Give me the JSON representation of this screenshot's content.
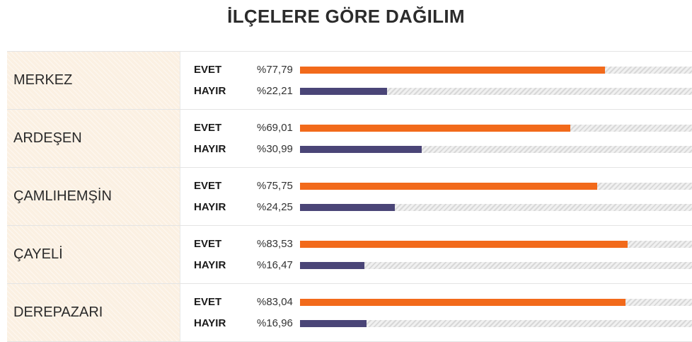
{
  "title": "İLÇELERE GÖRE DAĞILIM",
  "colors": {
    "evet": "#f26a1b",
    "hayir": "#4a4577"
  },
  "chart_data": {
    "type": "bar",
    "title": "İLÇELERE GÖRE DAĞILIM",
    "categories": [
      "MERKEZ",
      "ARDEŞEN",
      "ÇAMLIHEMŞİN",
      "ÇAYELİ",
      "DEREPAZARI"
    ],
    "series": [
      {
        "name": "EVET",
        "color": "#f26a1b",
        "values": [
          77.79,
          69.01,
          75.75,
          83.53,
          83.04
        ],
        "labels": [
          "%77,79",
          "%69,01",
          "%75,75",
          "%83,53",
          "%83,04"
        ]
      },
      {
        "name": "HAYIR",
        "color": "#4a4577",
        "values": [
          22.21,
          30.99,
          24.25,
          16.47,
          16.96
        ],
        "labels": [
          "%22,21",
          "%30,99",
          "%24,25",
          "%16,47",
          "%16,96"
        ]
      }
    ],
    "ylim": [
      0,
      100
    ]
  },
  "rows": [
    {
      "district": "MERKEZ",
      "evet_label": "EVET",
      "evet_pct": "%77,79",
      "evet_value": 77.79,
      "hayir_label": "HAYIR",
      "hayir_pct": "%22,21",
      "hayir_value": 22.21
    },
    {
      "district": "ARDEŞEN",
      "evet_label": "EVET",
      "evet_pct": "%69,01",
      "evet_value": 69.01,
      "hayir_label": "HAYIR",
      "hayir_pct": "%30,99",
      "hayir_value": 30.99
    },
    {
      "district": "ÇAMLIHEMŞİN",
      "evet_label": "EVET",
      "evet_pct": "%75,75",
      "evet_value": 75.75,
      "hayir_label": "HAYIR",
      "hayir_pct": "%24,25",
      "hayir_value": 24.25
    },
    {
      "district": "ÇAYELİ",
      "evet_label": "EVET",
      "evet_pct": "%83,53",
      "evet_value": 83.53,
      "hayir_label": "HAYIR",
      "hayir_pct": "%16,47",
      "hayir_value": 16.47
    },
    {
      "district": "DEREPAZARI",
      "evet_label": "EVET",
      "evet_pct": "%83,04",
      "evet_value": 83.04,
      "hayir_label": "HAYIR",
      "hayir_pct": "%16,96",
      "hayir_value": 16.96
    }
  ]
}
